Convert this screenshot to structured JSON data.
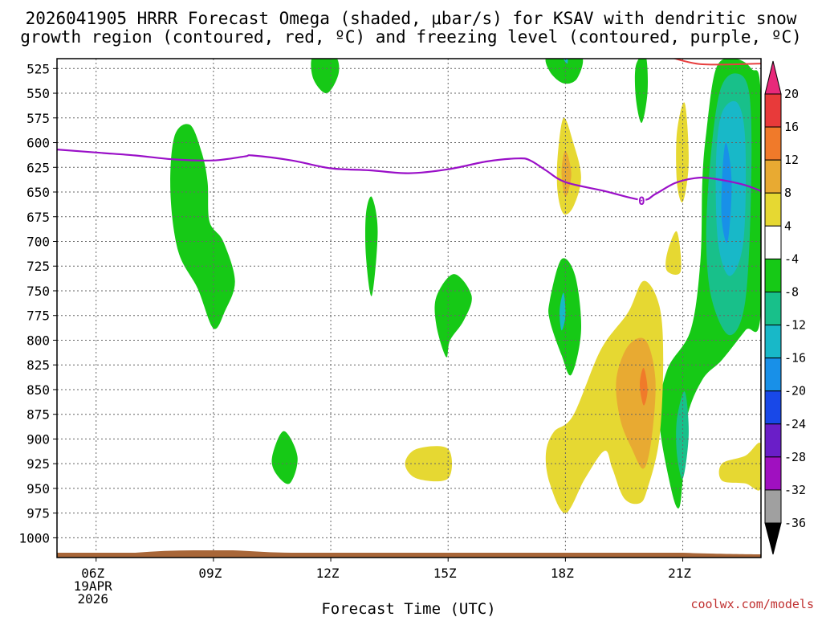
{
  "chart_data": {
    "type": "heatmap",
    "title_lines": [
      "2026041905 HRRR Forecast Omega (shaded, μbar/s) for KSAV with dendritic snow",
      "growth region (contoured, red, ºC) and freezing level (contoured, purple, ºC)"
    ],
    "xlabel": "Forecast Time (UTC)",
    "credit": "coolwx.com/models",
    "x_range_hours": [
      5,
      23
    ],
    "y_range_hpa": [
      515,
      1020
    ],
    "x_ticks": [
      {
        "hour": 6,
        "lines": [
          "06Z",
          "19APR",
          "2026"
        ]
      },
      {
        "hour": 9,
        "lines": [
          "09Z"
        ]
      },
      {
        "hour": 12,
        "lines": [
          "12Z"
        ]
      },
      {
        "hour": 15,
        "lines": [
          "15Z"
        ]
      },
      {
        "hour": 18,
        "lines": [
          "18Z"
        ]
      },
      {
        "hour": 21,
        "lines": [
          "21Z"
        ]
      }
    ],
    "y_ticks": [
      "525",
      "550",
      "575",
      "600",
      "625",
      "650",
      "675",
      "700",
      "725",
      "750",
      "775",
      "800",
      "825",
      "850",
      "875",
      "900",
      "925",
      "950",
      "975",
      "1000"
    ],
    "colorbar": {
      "labels": [
        "20",
        "16",
        "12",
        "8",
        "4",
        "-4",
        "-8",
        "-12",
        "-16",
        "-20",
        "-24",
        "-28",
        "-32",
        "-36"
      ],
      "colors": [
        "#e8297a",
        "#e83a3a",
        "#f07a2a",
        "#e8aa32",
        "#e6d832",
        "#ffffff",
        "#16c916",
        "#18c08a",
        "#18b8c8",
        "#1890e8",
        "#1848e8",
        "#6a1ec8",
        "#a010c0",
        "#a0a0a0",
        "#000000"
      ]
    },
    "freezing_level": {
      "label": "0",
      "color": "#9a10c8",
      "points": [
        [
          5,
          607
        ],
        [
          6,
          610
        ],
        [
          7,
          613
        ],
        [
          8,
          617
        ],
        [
          9,
          618
        ],
        [
          9.8,
          614
        ],
        [
          10,
          613
        ],
        [
          11,
          618
        ],
        [
          12,
          626
        ],
        [
          13,
          628
        ],
        [
          14,
          631
        ],
        [
          15,
          627
        ],
        [
          16,
          619
        ],
        [
          16.8,
          616
        ],
        [
          17.1,
          618
        ],
        [
          17.5,
          628
        ],
        [
          18,
          640
        ],
        [
          19,
          649
        ],
        [
          19.95,
          658
        ],
        [
          20.3,
          652
        ],
        [
          20.8,
          641
        ],
        [
          21.3,
          636
        ],
        [
          21.7,
          636
        ],
        [
          22.5,
          642
        ],
        [
          23,
          649
        ]
      ]
    },
    "dgz_contour": {
      "color": "#e84040",
      "points": [
        [
          20.3,
          509
        ],
        [
          21.2,
          519
        ],
        [
          21.8,
          521
        ],
        [
          23,
          520
        ]
      ]
    },
    "terrain_color": "#a86638",
    "omega_regions": [
      {
        "level": "-4",
        "color": "#16c916",
        "points": [
          [
            8.0,
            594
          ],
          [
            8.4,
            582
          ],
          [
            8.7,
            610
          ],
          [
            8.85,
            640
          ],
          [
            8.9,
            680
          ],
          [
            9.25,
            700
          ],
          [
            9.55,
            740
          ],
          [
            9.3,
            770
          ],
          [
            9.0,
            788
          ],
          [
            8.6,
            748
          ],
          [
            8.1,
            710
          ],
          [
            7.9,
            650
          ]
        ]
      },
      {
        "level": "-4",
        "color": "#16c916",
        "points": [
          [
            11.55,
            512
          ],
          [
            12.1,
            512
          ],
          [
            12.2,
            530
          ],
          [
            11.9,
            550
          ],
          [
            11.55,
            535
          ]
        ]
      },
      {
        "level": "-4",
        "color": "#16c916",
        "points": [
          [
            12.9,
            672
          ],
          [
            13.05,
            655
          ],
          [
            13.2,
            690
          ],
          [
            13.05,
            755
          ],
          [
            12.9,
            715
          ]
        ]
      },
      {
        "level": "-4",
        "color": "#16c916",
        "points": [
          [
            14.7,
            756
          ],
          [
            15.15,
            733
          ],
          [
            15.6,
            755
          ],
          [
            15.4,
            780
          ],
          [
            15.05,
            800
          ],
          [
            14.95,
            817
          ],
          [
            14.7,
            785
          ]
        ]
      },
      {
        "level": "-4",
        "color": "#16c916",
        "points": [
          [
            10.5,
            918
          ],
          [
            10.8,
            892
          ],
          [
            11.15,
            918
          ],
          [
            10.95,
            945
          ],
          [
            10.6,
            935
          ]
        ]
      },
      {
        "level": "-4",
        "color": "#16c916",
        "points": [
          [
            17.55,
            512
          ],
          [
            18.4,
            512
          ],
          [
            18.3,
            535
          ],
          [
            17.95,
            540
          ],
          [
            17.6,
            528
          ]
        ]
      },
      {
        "level": "-4",
        "color": "#16c916",
        "points": [
          [
            17.6,
            760
          ],
          [
            17.9,
            718
          ],
          [
            18.25,
            735
          ],
          [
            18.4,
            790
          ],
          [
            18.15,
            835
          ],
          [
            17.9,
            815
          ],
          [
            17.6,
            780
          ]
        ]
      },
      {
        "level": "-4",
        "color": "#16c916",
        "points": [
          [
            19.8,
            522
          ],
          [
            20.05,
            512
          ],
          [
            20.1,
            548
          ],
          [
            19.95,
            580
          ],
          [
            19.8,
            555
          ]
        ]
      },
      {
        "level": "-4",
        "color": "#16c916",
        "points": [
          [
            21.6,
            590
          ],
          [
            21.85,
            525
          ],
          [
            22.3,
            515
          ],
          [
            22.75,
            525
          ],
          [
            23.0,
            555
          ],
          [
            23.0,
            770
          ],
          [
            22.6,
            790
          ],
          [
            22.0,
            820
          ],
          [
            21.5,
            840
          ],
          [
            21.1,
            880
          ],
          [
            21.0,
            940
          ],
          [
            20.9,
            970
          ],
          [
            20.7,
            950
          ],
          [
            20.4,
            880
          ],
          [
            20.6,
            830
          ],
          [
            21.2,
            790
          ],
          [
            21.45,
            720
          ],
          [
            21.5,
            640
          ]
        ]
      },
      {
        "level": "-8",
        "color": "#18c08a",
        "points": [
          [
            21.7,
            620
          ],
          [
            21.95,
            548
          ],
          [
            22.35,
            530
          ],
          [
            22.7,
            550
          ],
          [
            22.75,
            640
          ],
          [
            22.6,
            760
          ],
          [
            22.2,
            795
          ],
          [
            21.75,
            760
          ],
          [
            21.6,
            700
          ]
        ]
      },
      {
        "level": "-12",
        "color": "#18b8c8",
        "points": [
          [
            21.85,
            620
          ],
          [
            22.0,
            570
          ],
          [
            22.4,
            560
          ],
          [
            22.6,
            600
          ],
          [
            22.55,
            700
          ],
          [
            22.2,
            735
          ],
          [
            21.9,
            700
          ]
        ]
      },
      {
        "level": "-16",
        "color": "#1890e8",
        "points": [
          [
            22.0,
            640
          ],
          [
            22.1,
            600
          ],
          [
            22.25,
            640
          ],
          [
            22.15,
            700
          ],
          [
            22.0,
            680
          ]
        ]
      },
      {
        "level": "-8",
        "color": "#18c08a",
        "points": [
          [
            20.85,
            880
          ],
          [
            21.05,
            852
          ],
          [
            21.15,
            895
          ],
          [
            21.0,
            940
          ],
          [
            20.85,
            915
          ]
        ]
      },
      {
        "level": "-12",
        "color": "#18b8c8",
        "points": [
          [
            17.85,
            770
          ],
          [
            17.95,
            752
          ],
          [
            18.0,
            775
          ],
          [
            17.9,
            790
          ]
        ]
      },
      {
        "level": "-12",
        "color": "#18b8c8",
        "points": [
          [
            17.95,
            515
          ],
          [
            18.05,
            512
          ],
          [
            18.05,
            520
          ]
        ]
      },
      {
        "level": "4",
        "color": "#e6d832",
        "points": [
          [
            17.8,
            615
          ],
          [
            17.95,
            575
          ],
          [
            18.2,
            600
          ],
          [
            18.4,
            635
          ],
          [
            18.2,
            665
          ],
          [
            17.95,
            672
          ],
          [
            17.8,
            650
          ]
        ]
      },
      {
        "level": "8",
        "color": "#e8aa32",
        "points": [
          [
            17.9,
            630
          ],
          [
            18.0,
            608
          ],
          [
            18.15,
            632
          ],
          [
            18.0,
            655
          ]
        ]
      },
      {
        "level": "4",
        "color": "#e6d832",
        "points": [
          [
            20.85,
            590
          ],
          [
            21.05,
            560
          ],
          [
            21.15,
            620
          ],
          [
            21.0,
            660
          ],
          [
            20.85,
            640
          ]
        ]
      },
      {
        "level": "4",
        "color": "#e6d832",
        "points": [
          [
            20.6,
            712
          ],
          [
            20.85,
            690
          ],
          [
            20.95,
            730
          ],
          [
            20.6,
            730
          ]
        ]
      },
      {
        "level": "4",
        "color": "#e6d832",
        "points": [
          [
            18.2,
            876
          ],
          [
            18.9,
            810
          ],
          [
            19.6,
            772
          ],
          [
            20.0,
            740
          ],
          [
            20.4,
            765
          ],
          [
            20.5,
            820
          ],
          [
            20.4,
            900
          ],
          [
            20.1,
            950
          ],
          [
            19.9,
            965
          ],
          [
            19.5,
            960
          ],
          [
            19.2,
            930
          ],
          [
            19.0,
            912
          ],
          [
            18.5,
            940
          ],
          [
            18.0,
            975
          ],
          [
            17.6,
            945
          ],
          [
            17.5,
            915
          ],
          [
            17.7,
            893
          ]
        ]
      },
      {
        "level": "8",
        "color": "#e8aa32",
        "points": [
          [
            19.3,
            840
          ],
          [
            19.6,
            806
          ],
          [
            20.05,
            800
          ],
          [
            20.3,
            840
          ],
          [
            20.2,
            900
          ],
          [
            20.0,
            930
          ],
          [
            19.7,
            910
          ],
          [
            19.4,
            880
          ]
        ]
      },
      {
        "level": "12",
        "color": "#f07a2a",
        "points": [
          [
            19.9,
            845
          ],
          [
            20.0,
            828
          ],
          [
            20.1,
            850
          ],
          [
            20.0,
            866
          ]
        ]
      },
      {
        "level": "4",
        "color": "#e6d832",
        "points": [
          [
            14.2,
            910
          ],
          [
            15.0,
            910
          ],
          [
            15.0,
            940
          ],
          [
            14.2,
            940
          ],
          [
            13.9,
            925
          ]
        ]
      },
      {
        "level": "4",
        "color": "#e6d832",
        "points": [
          [
            22.0,
            925
          ],
          [
            22.6,
            917
          ],
          [
            23.0,
            905
          ],
          [
            23.0,
            950
          ],
          [
            22.6,
            945
          ],
          [
            22.0,
            942
          ]
        ]
      }
    ]
  }
}
